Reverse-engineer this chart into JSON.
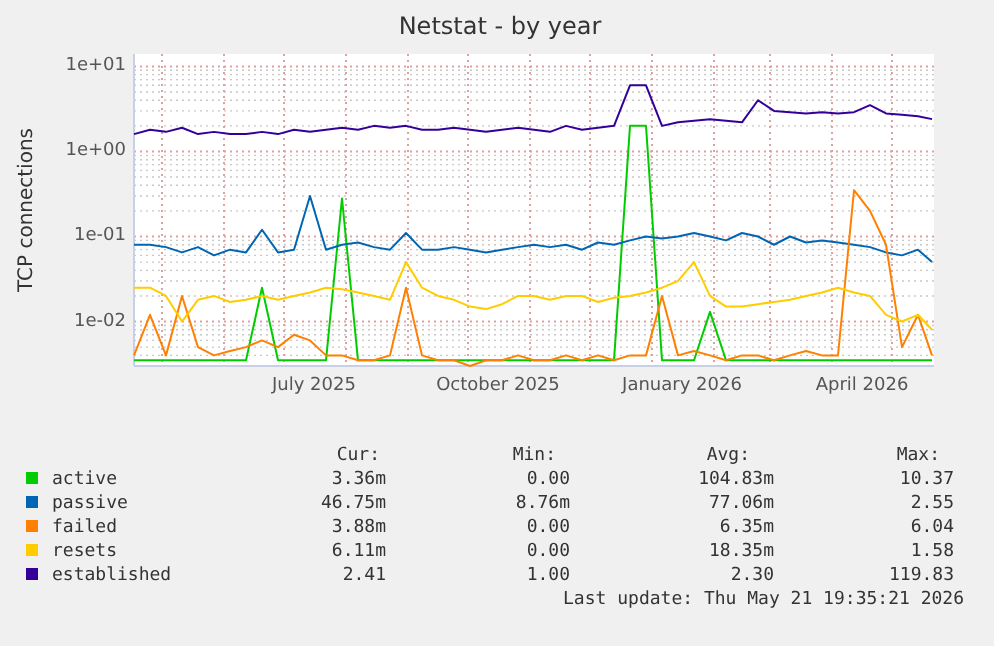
{
  "chart_data": {
    "type": "line",
    "title": "Netstat - by year",
    "ylabel": "TCP connections",
    "log": true,
    "grid": true,
    "legend": "bottom",
    "marker": "none",
    "line_style": "solid",
    "xlim": [
      "2025-04-17",
      "2026-05-22"
    ],
    "xticks": [
      {
        "value": "2025-05-01",
        "label": null
      },
      {
        "value": "2025-06-01",
        "label": null
      },
      {
        "value": "2025-07-01",
        "label": null
      },
      {
        "value": "2025-07-16",
        "label": "July 2025"
      },
      {
        "value": "2025-08-01",
        "label": null
      },
      {
        "value": "2025-09-01",
        "label": null
      },
      {
        "value": "2025-10-01",
        "label": null
      },
      {
        "value": "2025-10-16",
        "label": "October 2025"
      },
      {
        "value": "2025-11-01",
        "label": null
      },
      {
        "value": "2025-12-01",
        "label": null
      },
      {
        "value": "2026-01-01",
        "label": null
      },
      {
        "value": "2026-01-16",
        "label": "January 2026"
      },
      {
        "value": "2026-02-01",
        "label": null
      },
      {
        "value": "2026-03-01",
        "label": null
      },
      {
        "value": "2026-04-01",
        "label": null
      },
      {
        "value": "2026-04-16",
        "label": "April 2026"
      },
      {
        "value": "2026-05-01",
        "label": null
      }
    ],
    "ylim": [
      0.003,
      14
    ],
    "yticks": [
      {
        "value": 0.01,
        "label": "1e-02"
      },
      {
        "value": 0.1,
        "label": "1e-01"
      },
      {
        "value": 1,
        "label": "1e+00"
      },
      {
        "value": 10,
        "label": "1e+01"
      }
    ],
    "x": [
      "2025-04-17",
      "2025-04-25",
      "2025-05-03",
      "2025-05-11",
      "2025-05-19",
      "2025-05-27",
      "2025-06-04",
      "2025-06-12",
      "2025-06-20",
      "2025-06-28",
      "2025-07-06",
      "2025-07-14",
      "2025-07-22",
      "2025-07-30",
      "2025-08-07",
      "2025-08-15",
      "2025-08-23",
      "2025-08-31",
      "2025-09-08",
      "2025-09-16",
      "2025-09-24",
      "2025-10-02",
      "2025-10-10",
      "2025-10-18",
      "2025-10-26",
      "2025-11-03",
      "2025-11-11",
      "2025-11-19",
      "2025-11-27",
      "2025-12-05",
      "2025-12-13",
      "2025-12-21",
      "2025-12-29",
      "2026-01-06",
      "2026-01-14",
      "2026-01-22",
      "2026-01-30",
      "2026-02-07",
      "2026-02-15",
      "2026-02-23",
      "2026-03-03",
      "2026-03-11",
      "2026-03-19",
      "2026-03-27",
      "2026-04-04",
      "2026-04-12",
      "2026-04-20",
      "2026-04-28",
      "2026-05-06",
      "2026-05-14",
      "2026-05-21"
    ],
    "series": [
      {
        "name": "active",
        "color": "#00cc00",
        "values": [
          0.0035,
          0.0035,
          0.0035,
          0.0035,
          0.0035,
          0.0035,
          0.0035,
          0.0035,
          0.025,
          0.0035,
          0.0035,
          0.0035,
          0.0035,
          0.28,
          0.0035,
          0.0035,
          0.0035,
          0.0035,
          0.0035,
          0.0035,
          0.0035,
          0.0035,
          0.0035,
          0.0035,
          0.0035,
          0.0035,
          0.0035,
          0.0035,
          0.0035,
          0.0035,
          0.0035,
          2.0,
          2.0,
          0.0035,
          0.0035,
          0.0035,
          0.013,
          0.0035,
          0.0035,
          0.0035,
          0.0035,
          0.0035,
          0.0035,
          0.0035,
          0.0035,
          0.0035,
          0.0035,
          0.0035,
          0.0035,
          0.0035,
          0.0035
        ]
      },
      {
        "name": "passive",
        "color": "#0066b3",
        "values": [
          0.08,
          0.08,
          0.075,
          0.065,
          0.075,
          0.06,
          0.07,
          0.065,
          0.12,
          0.065,
          0.07,
          0.3,
          0.07,
          0.08,
          0.085,
          0.075,
          0.07,
          0.11,
          0.07,
          0.07,
          0.075,
          0.07,
          0.065,
          0.07,
          0.075,
          0.08,
          0.075,
          0.08,
          0.07,
          0.085,
          0.08,
          0.09,
          0.1,
          0.095,
          0.1,
          0.11,
          0.1,
          0.09,
          0.11,
          0.1,
          0.08,
          0.1,
          0.085,
          0.09,
          0.085,
          0.08,
          0.075,
          0.065,
          0.06,
          0.07,
          0.05
        ]
      },
      {
        "name": "failed",
        "color": "#ff8000",
        "values": [
          0.004,
          0.012,
          0.004,
          0.02,
          0.005,
          0.004,
          0.0045,
          0.005,
          0.006,
          0.005,
          0.007,
          0.006,
          0.004,
          0.004,
          0.0035,
          0.0035,
          0.004,
          0.025,
          0.004,
          0.0035,
          0.0035,
          0.003,
          0.0035,
          0.0035,
          0.004,
          0.0035,
          0.0035,
          0.004,
          0.0035,
          0.004,
          0.0035,
          0.004,
          0.004,
          0.02,
          0.004,
          0.0045,
          0.004,
          0.0035,
          0.004,
          0.004,
          0.0035,
          0.004,
          0.0045,
          0.004,
          0.004,
          0.35,
          0.2,
          0.08,
          0.005,
          0.012,
          0.004
        ]
      },
      {
        "name": "resets",
        "color": "#ffcc00",
        "values": [
          0.025,
          0.025,
          0.02,
          0.01,
          0.018,
          0.02,
          0.017,
          0.018,
          0.02,
          0.018,
          0.02,
          0.022,
          0.025,
          0.024,
          0.022,
          0.02,
          0.018,
          0.05,
          0.025,
          0.02,
          0.018,
          0.015,
          0.014,
          0.016,
          0.02,
          0.02,
          0.018,
          0.02,
          0.02,
          0.017,
          0.019,
          0.02,
          0.022,
          0.025,
          0.03,
          0.05,
          0.02,
          0.015,
          0.015,
          0.016,
          0.017,
          0.018,
          0.02,
          0.022,
          0.025,
          0.022,
          0.02,
          0.012,
          0.01,
          0.012,
          0.008
        ]
      },
      {
        "name": "established",
        "color": "#330099",
        "values": [
          1.6,
          1.8,
          1.7,
          1.9,
          1.6,
          1.7,
          1.6,
          1.6,
          1.7,
          1.6,
          1.8,
          1.7,
          1.8,
          1.9,
          1.8,
          2.0,
          1.9,
          2.0,
          1.8,
          1.8,
          1.9,
          1.8,
          1.7,
          1.8,
          1.9,
          1.8,
          1.7,
          2.0,
          1.8,
          1.9,
          2.0,
          6.0,
          6.0,
          2.0,
          2.2,
          2.3,
          2.4,
          2.3,
          2.2,
          4.0,
          3.0,
          2.9,
          2.8,
          2.9,
          2.8,
          2.9,
          3.5,
          2.8,
          2.7,
          2.6,
          2.4
        ]
      }
    ],
    "annotations": [
      "Cur:",
      "Min:",
      "Avg:",
      "Max:",
      "3.36m",
      "0.00",
      "104.83m",
      "10.37",
      "46.75m",
      "8.76m",
      "77.06m",
      "2.55",
      "3.88m",
      "0.00",
      "6.35m",
      "6.04",
      "6.11m",
      "0.00",
      "18.35m",
      "1.58",
      "2.41",
      "1.00",
      "2.30",
      "119.83",
      "Last update: Thu May 21 19:35:21 2026"
    ]
  }
}
